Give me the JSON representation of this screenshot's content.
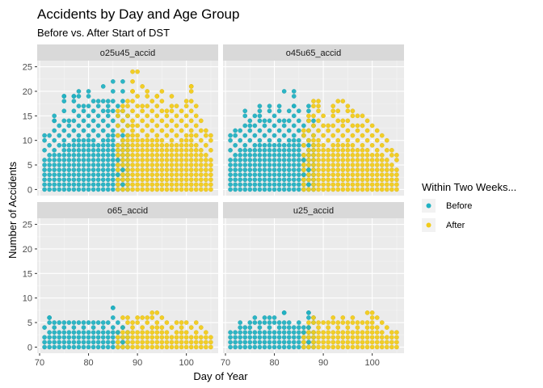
{
  "chart_data": {
    "type": "scatter",
    "title": "Accidents by Day and Age Group",
    "subtitle": "Before vs. After Start of DST",
    "xlabel": "Day of Year",
    "ylabel": "Number of Accidents",
    "xlim": [
      69.5,
      106.5
    ],
    "ylim": [
      -1.25,
      26.25
    ],
    "x_ticks": [
      70,
      80,
      90,
      100
    ],
    "y_ticks": [
      0,
      5,
      10,
      15,
      20,
      25
    ],
    "grid": true,
    "legend": {
      "title": "Within Two Weeks...",
      "position": "right",
      "entries": [
        {
          "label": "Before",
          "color": "#22b2c3"
        },
        {
          "label": "After",
          "color": "#f2cc1b"
        }
      ]
    },
    "colors": {
      "before": "#22b2c3",
      "after": "#f2cc1b",
      "panel_bg": "#ebebeb",
      "strip_bg": "#d9d9d9",
      "grid": "#ffffff"
    },
    "facet_layout": "2x2",
    "split_day": 86,
    "panels": [
      {
        "name": "o25u45_accid",
        "before_max": [
          11,
          11,
          15,
          13,
          19,
          14,
          19,
          20,
          16,
          19,
          18,
          17,
          18,
          18,
          20,
          17,
          22,
          15
        ],
        "after_max": [
          16,
          17,
          18,
          24,
          19,
          17,
          20,
          18,
          19,
          18,
          16,
          17,
          17,
          16,
          18,
          21,
          17,
          14,
          12,
          11
        ],
        "before_outliers": [
          [
            73,
            14
          ],
          [
            75,
            19
          ],
          [
            77,
            19
          ],
          [
            79,
            17
          ],
          [
            80,
            20
          ],
          [
            82,
            18
          ],
          [
            83,
            21
          ],
          [
            85,
            22
          ],
          [
            84,
            16
          ]
        ],
        "after_outliers": [
          [
            89,
            20
          ],
          [
            90,
            24
          ],
          [
            91,
            21
          ],
          [
            95,
            20
          ],
          [
            101,
            21
          ],
          [
            97,
            19
          ],
          [
            94,
            19
          ]
        ]
      },
      {
        "name": "o45u65_accid",
        "before_max": [
          11,
          12,
          12,
          16,
          13,
          15,
          17,
          14,
          16,
          15,
          17,
          14,
          16,
          20,
          16,
          13,
          17,
          14
        ],
        "after_max": [
          12,
          15,
          18,
          17,
          15,
          13,
          16,
          18,
          14,
          17,
          16,
          13,
          15,
          14,
          13,
          12,
          11,
          10,
          8,
          7
        ],
        "before_outliers": [
          [
            75,
            14
          ],
          [
            77,
            15
          ],
          [
            79,
            17
          ],
          [
            82,
            20
          ],
          [
            84,
            17
          ]
        ],
        "after_outliers": [
          [
            89,
            18
          ],
          [
            92,
            17
          ],
          [
            94,
            18
          ],
          [
            97,
            15
          ]
        ]
      },
      {
        "name": "o65_accid",
        "before_max": [
          4,
          6,
          5,
          5,
          5,
          5,
          5,
          5,
          5,
          5,
          5,
          5,
          5,
          5,
          8,
          5,
          4,
          3
        ],
        "after_max": [
          3,
          6,
          6,
          5,
          6,
          6,
          6,
          6,
          7,
          6,
          5,
          4,
          5,
          5,
          5,
          4,
          5,
          4,
          3,
          2
        ],
        "before_outliers": [
          [
            72,
            6
          ],
          [
            85,
            8
          ]
        ],
        "after_outliers": [
          [
            93,
            7
          ]
        ]
      },
      {
        "name": "u25_accid",
        "before_max": [
          3,
          3,
          5,
          4,
          5,
          6,
          5,
          6,
          5,
          6,
          5,
          7,
          5,
          4,
          5,
          4,
          7,
          6
        ],
        "after_max": [
          3,
          5,
          6,
          5,
          5,
          5,
          6,
          5,
          6,
          5,
          6,
          5,
          5,
          5,
          7,
          6,
          5,
          4,
          3,
          3
        ],
        "before_outliers": [
          [
            79,
            6
          ],
          [
            82,
            7
          ],
          [
            87,
            7
          ]
        ],
        "after_outliers": [
          [
            99,
            7
          ],
          [
            100,
            6
          ]
        ]
      }
    ]
  }
}
